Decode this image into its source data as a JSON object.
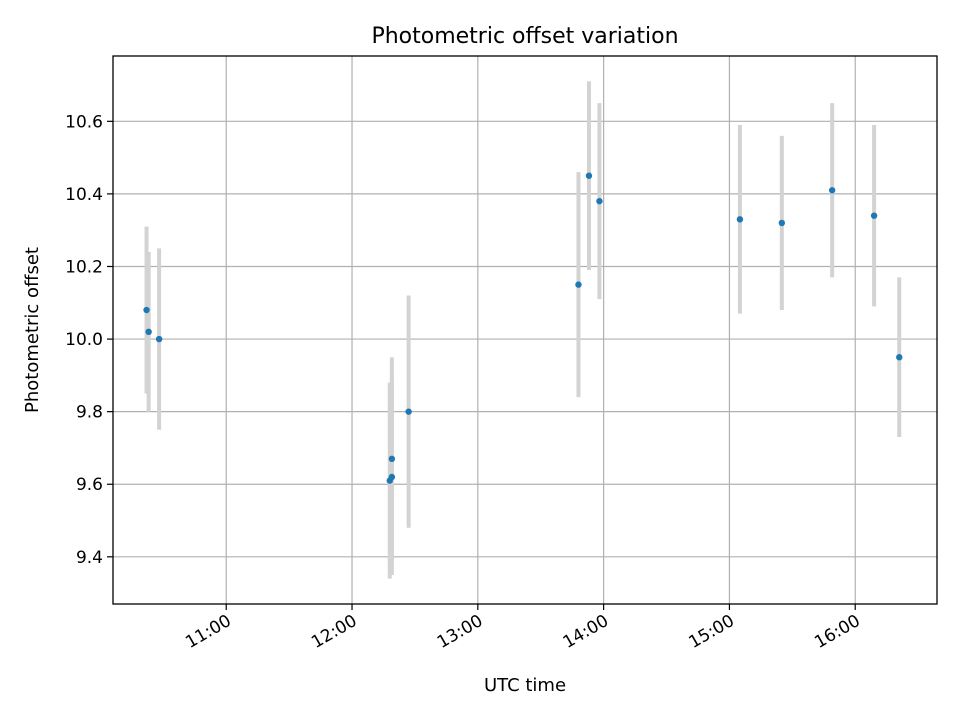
{
  "chart_data": {
    "type": "scatter",
    "title": "Photometric offset variation",
    "xlabel": "UTC time",
    "ylabel": "Photometric offset",
    "xlim": [
      "10:06",
      "16:39"
    ],
    "ylim": [
      9.27,
      10.78
    ],
    "x_ticks": [
      "11:00",
      "12:00",
      "13:00",
      "14:00",
      "15:00",
      "16:00"
    ],
    "y_ticks": [
      9.4,
      9.6,
      9.8,
      10.0,
      10.2,
      10.4,
      10.6
    ],
    "grid": true,
    "legend": "none",
    "colors": {
      "marker": "#1f77b4",
      "error_bar": "#d3d3d3"
    },
    "points": [
      {
        "x": "10:22",
        "y": 10.08,
        "err": 0.23
      },
      {
        "x": "10:23",
        "y": 10.02,
        "err": 0.22
      },
      {
        "x": "10:28",
        "y": 10.0,
        "err": 0.25
      },
      {
        "x": "12:18",
        "y": 9.61,
        "err": 0.27
      },
      {
        "x": "12:19",
        "y": 9.62,
        "err": 0.27
      },
      {
        "x": "12:19",
        "y": 9.67,
        "err": 0.28
      },
      {
        "x": "12:27",
        "y": 9.8,
        "err": 0.32
      },
      {
        "x": "13:48",
        "y": 10.15,
        "err": 0.31
      },
      {
        "x": "13:53",
        "y": 10.45,
        "err": 0.26
      },
      {
        "x": "13:58",
        "y": 10.38,
        "err": 0.27
      },
      {
        "x": "15:05",
        "y": 10.33,
        "err": 0.26
      },
      {
        "x": "15:25",
        "y": 10.32,
        "err": 0.24
      },
      {
        "x": "15:49",
        "y": 10.41,
        "err": 0.24
      },
      {
        "x": "16:09",
        "y": 10.34,
        "err": 0.25
      },
      {
        "x": "16:21",
        "y": 9.95,
        "err": 0.22
      }
    ]
  }
}
